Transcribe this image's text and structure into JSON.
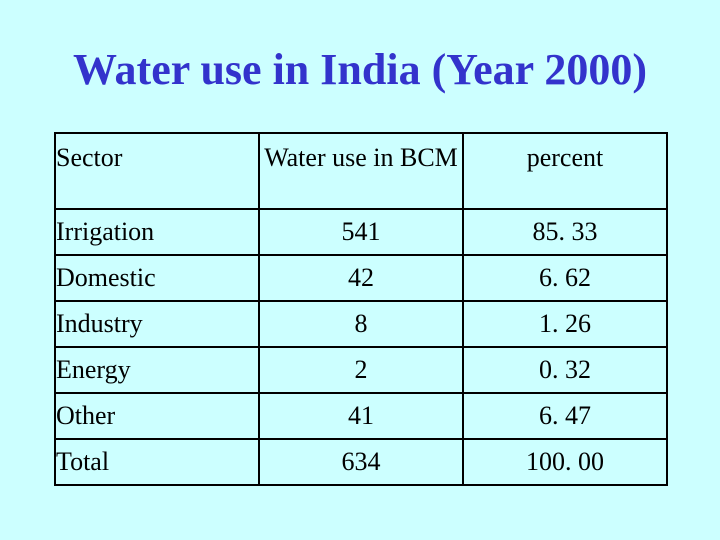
{
  "title": "Water use in India (Year 2000)",
  "table": {
    "headers": [
      "Sector",
      "Water use in BCM",
      "percent"
    ],
    "rows": [
      [
        "Irrigation",
        "541",
        "85. 33"
      ],
      [
        "Domestic",
        "42",
        "6. 62"
      ],
      [
        "Industry",
        "8",
        "1. 26"
      ],
      [
        "Energy",
        "2",
        "0. 32"
      ],
      [
        "Other",
        "41",
        "6. 47"
      ],
      [
        "Total",
        "634",
        "100. 00"
      ]
    ]
  },
  "colors": {
    "background": "#ccffff",
    "title": "#3333cc",
    "text": "#000000"
  }
}
